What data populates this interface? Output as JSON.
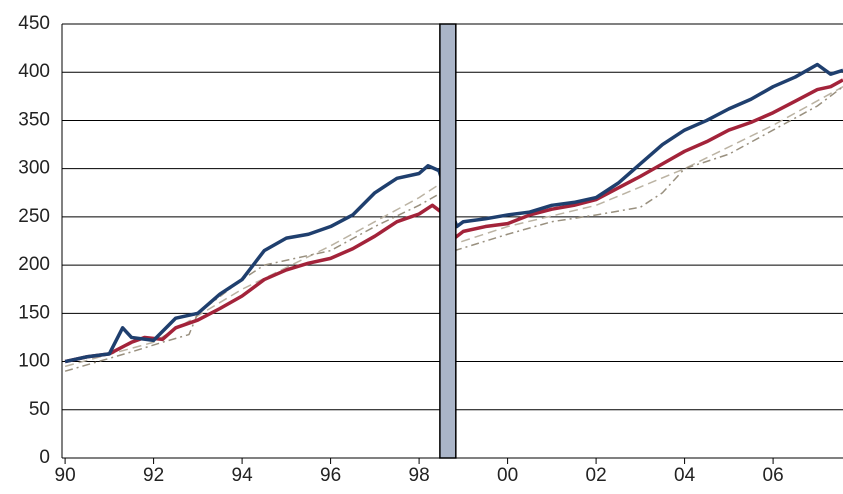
{
  "chart_data": {
    "type": "line",
    "xlim": [
      1989.93,
      2007.58
    ],
    "ylim": [
      0,
      450
    ],
    "yticks": [
      0,
      50,
      100,
      150,
      200,
      250,
      300,
      350,
      400,
      450
    ],
    "xticks": [
      {
        "value": 1990,
        "label": "90"
      },
      {
        "value": 1992,
        "label": "92"
      },
      {
        "value": 1994,
        "label": "94"
      },
      {
        "value": 1996,
        "label": "96"
      },
      {
        "value": 1998,
        "label": "98"
      },
      {
        "value": 2000,
        "label": "00"
      },
      {
        "value": 2002,
        "label": "02"
      },
      {
        "value": 2004,
        "label": "04"
      },
      {
        "value": 2006,
        "label": "06"
      }
    ],
    "grid": true,
    "shade": {
      "xrange": [
        1998.47,
        1998.83
      ],
      "color": "#aab5c8"
    },
    "series": [
      {
        "color": "#bbb3a3",
        "dash": "dashed",
        "x": [
          1990,
          1992,
          1994,
          1996,
          1997,
          1998,
          1998.5,
          1998.8,
          2000,
          2002,
          2004,
          2006,
          2007.58
        ],
        "values": [
          95,
          120,
          175,
          220,
          245,
          270,
          285,
          222,
          240,
          262,
          300,
          345,
          385
        ]
      },
      {
        "color": "#99907f",
        "dash": "dashdot",
        "x": [
          1990,
          1991.5,
          1992.2,
          1992.8,
          1993,
          1994,
          1994.5,
          1996,
          1997,
          1998,
          1998.5,
          1998.8,
          2000,
          2001,
          2002,
          2003,
          2003.5,
          2004,
          2005,
          2006,
          2007,
          2007.58
        ],
        "values": [
          90,
          110,
          120,
          128,
          150,
          185,
          200,
          215,
          240,
          262,
          275,
          215,
          232,
          245,
          252,
          260,
          275,
          300,
          315,
          340,
          365,
          385
        ]
      },
      {
        "color": "#a3233a",
        "dash": "solid",
        "x": [
          1990,
          1990.5,
          1991,
          1991.5,
          1991.8,
          1992.2,
          1992.5,
          1993,
          1993.5,
          1994,
          1994.5,
          1995,
          1995.5,
          1996,
          1996.5,
          1997,
          1997.5,
          1998,
          1998.3,
          1998.5,
          1998.8,
          1999,
          1999.5,
          2000,
          2000.5,
          2001,
          2001.5,
          2002,
          2002.5,
          2003,
          2003.5,
          2004,
          2004.5,
          2005,
          2005.5,
          2006,
          2006.5,
          2007,
          2007.3,
          2007.58
        ],
        "values": [
          100,
          105,
          108,
          120,
          125,
          123,
          135,
          143,
          155,
          168,
          185,
          195,
          202,
          207,
          217,
          230,
          245,
          253,
          262,
          255,
          228,
          235,
          240,
          243,
          252,
          258,
          262,
          268,
          280,
          292,
          305,
          318,
          328,
          340,
          348,
          358,
          370,
          382,
          385,
          392
        ]
      },
      {
        "color": "#1f3f6e",
        "dash": "solid",
        "x": [
          1990,
          1990.5,
          1991,
          1991.3,
          1991.5,
          1992,
          1992.5,
          1993,
          1993.5,
          1994,
          1994.5,
          1995,
          1995.5,
          1996,
          1996.5,
          1997,
          1997.5,
          1998,
          1998.2,
          1998.45,
          1998.85,
          1999,
          1999.5,
          2000,
          2000.5,
          2001,
          2001.5,
          2002,
          2002.5,
          2003,
          2003.5,
          2004,
          2004.5,
          2005,
          2005.5,
          2006,
          2006.5,
          2007,
          2007.3,
          2007.58
        ],
        "values": [
          100,
          105,
          108,
          135,
          125,
          122,
          145,
          150,
          170,
          185,
          215,
          228,
          232,
          240,
          252,
          275,
          290,
          295,
          303,
          298,
          240,
          245,
          248,
          252,
          255,
          262,
          265,
          270,
          285,
          305,
          325,
          340,
          350,
          362,
          372,
          385,
          395,
          408,
          398,
          402
        ]
      }
    ]
  }
}
